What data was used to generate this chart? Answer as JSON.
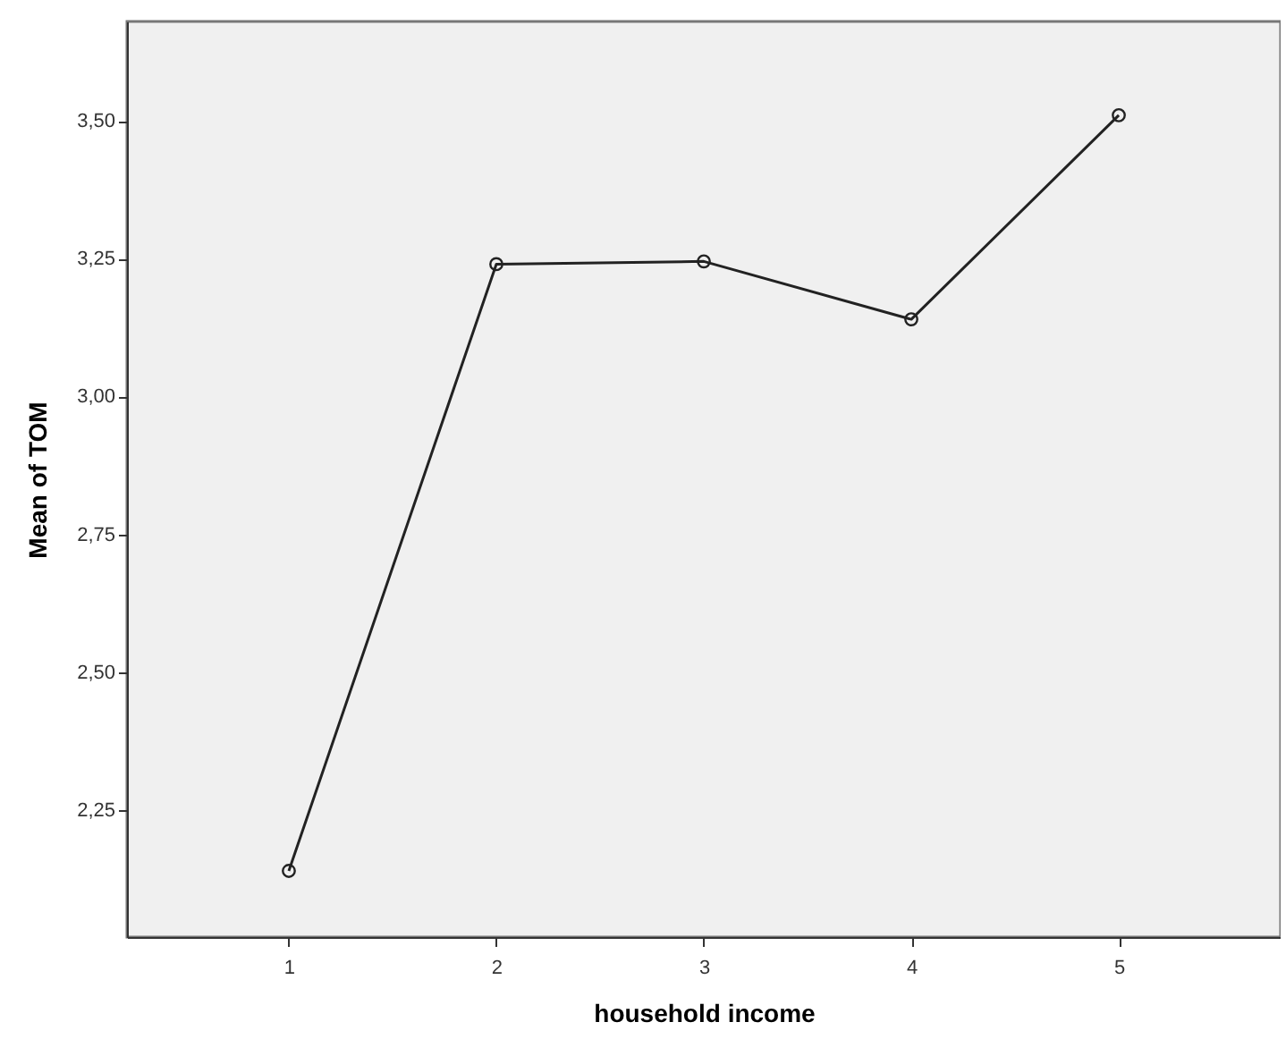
{
  "chart_data": {
    "type": "line",
    "xlabel": "household income",
    "ylabel": "Mean of TOM",
    "x": [
      1,
      2,
      3,
      4,
      5
    ],
    "series": [
      {
        "color": "#222222",
        "values": [
          2.14,
          3.24,
          3.245,
          3.14,
          3.51
        ]
      }
    ],
    "xlim": [
      0.22,
      5.78
    ],
    "xticks": [
      1,
      2,
      3,
      4,
      5
    ],
    "ylim": [
      2.02,
      3.68
    ],
    "yticks": [
      {
        "value": 2.25,
        "label": "2,25"
      },
      {
        "value": 2.5,
        "label": "2,50"
      },
      {
        "value": 2.75,
        "label": "2,75"
      },
      {
        "value": 3.0,
        "label": "3,00"
      },
      {
        "value": 3.25,
        "label": "3,25"
      },
      {
        "value": 3.5,
        "label": "3,50"
      }
    ],
    "grid": false,
    "marker": "circle",
    "line_style": "solid"
  }
}
